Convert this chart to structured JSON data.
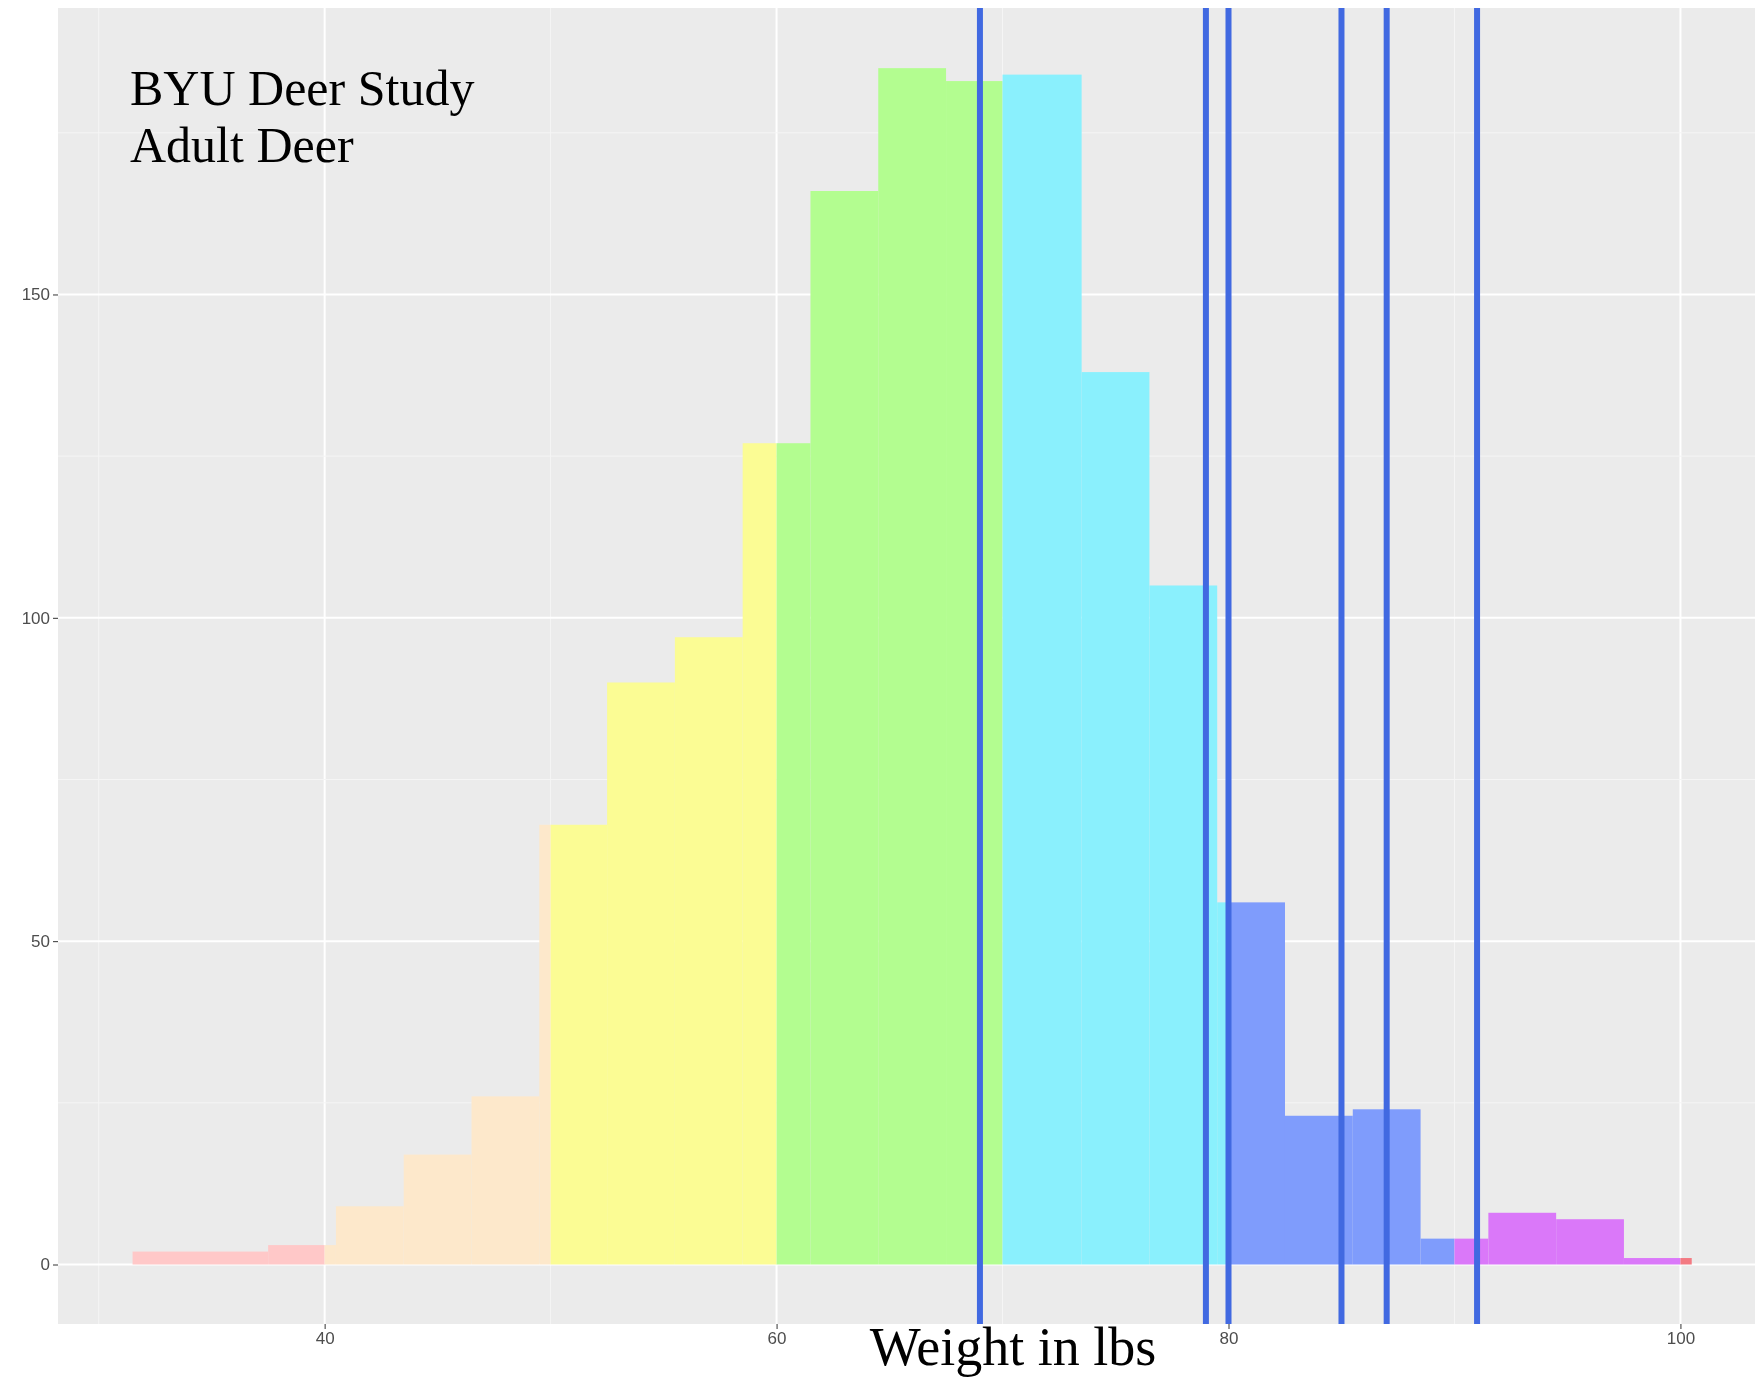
{
  "chart_data": {
    "type": "histogram",
    "title": "BYU Deer Study",
    "subtitle": "Adult Deer",
    "xlabel": "Weight in lbs",
    "bins": [
      31.5,
      37.5,
      40,
      40.5,
      43.5,
      46.5,
      49.5,
      50,
      52.5,
      55.5,
      58.5,
      60,
      61.5,
      64.5,
      67.5,
      70,
      73.5,
      76.5,
      79.5,
      80,
      82.5,
      85.5,
      88.5,
      90,
      91.5,
      94.5,
      97.5,
      100,
      100.5
    ],
    "values": [
      2,
      3,
      3,
      9,
      17,
      26,
      68,
      68,
      90,
      97,
      127,
      127,
      166,
      185,
      183,
      184,
      138,
      105,
      56,
      56,
      23,
      24,
      4,
      4,
      8,
      7,
      1,
      1
    ],
    "colors": [
      "#ffc8c8",
      "#ffc8c8",
      "#fde8cb",
      "#fde8cb",
      "#fde8cb",
      "#fde8cb",
      "#fde8cb",
      "#fbfc94",
      "#fbfc94",
      "#fbfc94",
      "#fbfc94",
      "#b3fd90",
      "#b3fd90",
      "#b3fd90",
      "#b3fd90",
      "#8af0fd",
      "#8af0fd",
      "#8af0fd",
      "#8af0fd",
      "#7f9cfc",
      "#7f9cfc",
      "#7f9cfc",
      "#7f9cfc",
      "#da78f9",
      "#da78f9",
      "#da78f9",
      "#da78f9",
      "#f37a82"
    ],
    "xlim": [
      28.2,
      103.3
    ],
    "ylim": [
      -9.2,
      194.3
    ],
    "xticks": [
      40,
      60,
      80,
      100
    ],
    "yticks": [
      0,
      50,
      100,
      150
    ],
    "grid": true,
    "ref_lines": [
      {
        "axis": "x",
        "value": 69,
        "color": "#4169e1"
      },
      {
        "axis": "x",
        "value": 79,
        "color": "#4169e1"
      },
      {
        "axis": "x",
        "value": 80,
        "color": "#4169e1"
      },
      {
        "axis": "x",
        "value": 85,
        "color": "#4169e1"
      },
      {
        "axis": "x",
        "value": 87,
        "color": "#4169e1"
      },
      {
        "axis": "x",
        "value": 91,
        "color": "#4169e1"
      }
    ]
  }
}
